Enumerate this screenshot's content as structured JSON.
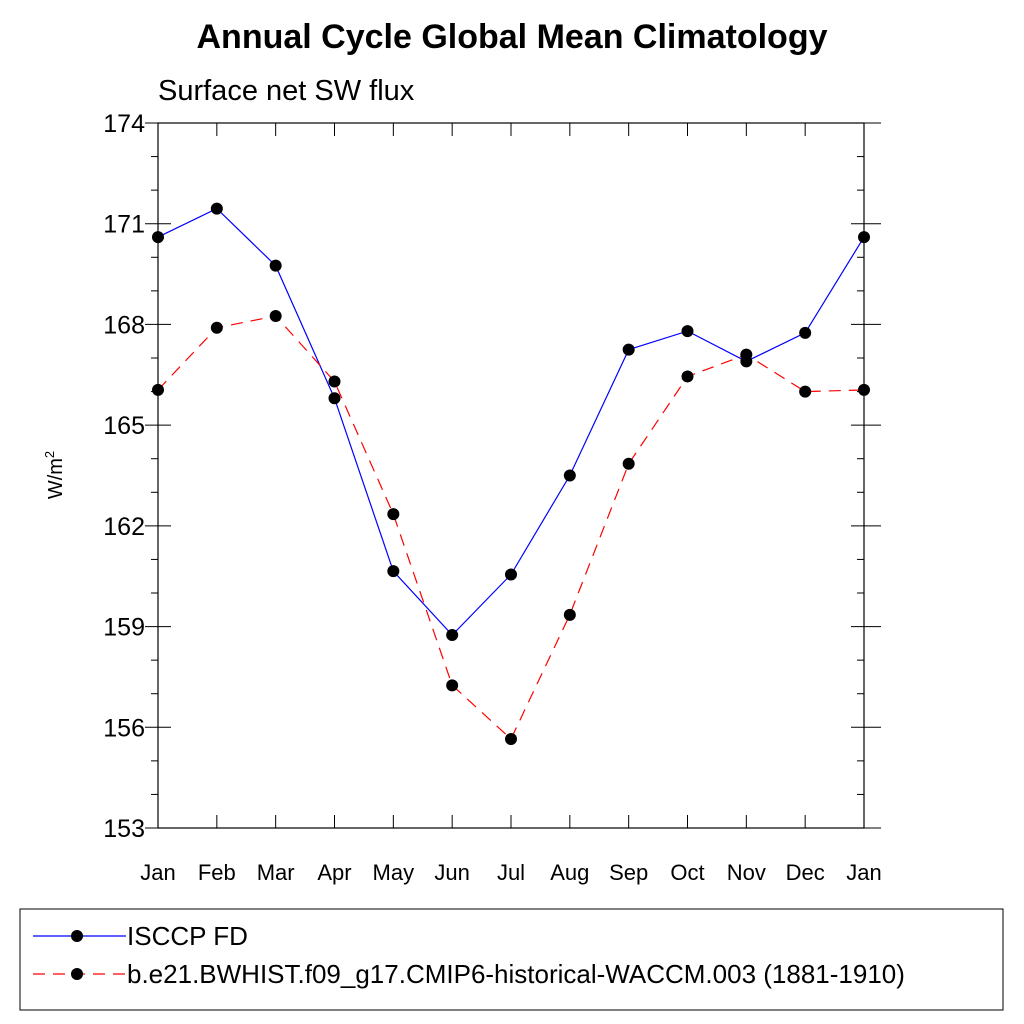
{
  "chart_data": {
    "type": "line",
    "title": "Annual Cycle Global Mean Climatology",
    "subtitle": "Surface net SW flux",
    "xlabel": "",
    "ylabel_base": "W/m",
    "ylabel_sup": "2",
    "categories": [
      "Jan",
      "Feb",
      "Mar",
      "Apr",
      "May",
      "Jun",
      "Jul",
      "Aug",
      "Sep",
      "Oct",
      "Nov",
      "Dec",
      "Jan"
    ],
    "ylim": [
      153,
      174
    ],
    "yticks": [
      153,
      156,
      159,
      162,
      165,
      168,
      171,
      174
    ],
    "grid": false,
    "legend_position": "bottom",
    "series": [
      {
        "name": "ISCCP FD",
        "color": "#0000ff",
        "dashed": false,
        "values": [
          170.6,
          171.45,
          169.75,
          165.8,
          160.65,
          158.75,
          160.55,
          163.5,
          167.25,
          167.8,
          166.9,
          167.75,
          170.6
        ]
      },
      {
        "name": "b.e21.BWHIST.f09_g17.CMIP6-historical-WACCM.003 (1881-1910)",
        "color": "#ff0000",
        "dashed": true,
        "values": [
          166.05,
          167.9,
          168.25,
          166.3,
          162.35,
          157.25,
          155.65,
          159.35,
          163.85,
          166.45,
          167.1,
          166.0,
          166.05
        ]
      }
    ]
  }
}
